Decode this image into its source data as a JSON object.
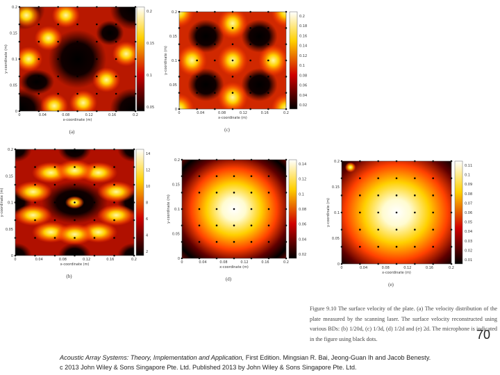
{
  "panels": [
    {
      "label": "(a)",
      "x_label": "x-coordinate (m)",
      "y_label": "y-coordinate (m)",
      "x_ticks": [
        "0",
        "0.04",
        "0.08",
        "0.12",
        "0.16",
        "0.2"
      ],
      "y_ticks": [
        "0",
        "0.05",
        "0.1",
        "0.15",
        "0.2"
      ],
      "colorbar_ticks": [
        "0.05",
        "0.1",
        "0.15",
        "0.2"
      ]
    },
    {
      "label": "(c)",
      "x_label": "x-coordinate (m)",
      "y_label": "y-coordinate (m)",
      "x_ticks": [
        "0",
        "0.04",
        "0.08",
        "0.12",
        "0.16",
        "0.2"
      ],
      "y_ticks": [
        "0",
        "0.05",
        "0.1",
        "0.15",
        "0.2"
      ],
      "colorbar_ticks": [
        "0.02",
        "0.04",
        "0.06",
        "0.08",
        "0.1",
        "0.12",
        "0.14",
        "0.16",
        "0.18",
        "0.2"
      ]
    },
    {
      "label": "(b)",
      "x_label": "x-coordinate (m)",
      "y_label": "y-coordinate (m)",
      "x_ticks": [
        "0",
        "0.04",
        "0.08",
        "0.12",
        "0.16",
        "0.2"
      ],
      "y_ticks": [
        "0",
        "0.05",
        "0.1",
        "0.15",
        "0.2"
      ],
      "colorbar_ticks": [
        "2",
        "4",
        "6",
        "8",
        "10",
        "12",
        "14"
      ]
    },
    {
      "label": "(d)",
      "x_label": "x-coordinate (m)",
      "y_label": "y-coordinate (m)",
      "x_ticks": [
        "0",
        "0.04",
        "0.08",
        "0.12",
        "0.16",
        "0.2"
      ],
      "y_ticks": [
        "0",
        "0.05",
        "0.1",
        "0.15",
        "0.2"
      ],
      "colorbar_ticks": [
        "0.02",
        "0.04",
        "0.06",
        "0.08",
        "0.1",
        "0.12",
        "0.14"
      ]
    },
    {
      "label": "(e)",
      "x_label": "x-coordinate (m)",
      "y_label": "y-coordinate (m)",
      "x_ticks": [
        "0",
        "0.04",
        "0.08",
        "0.12",
        "0.16",
        "0.2"
      ],
      "y_ticks": [
        "0",
        "0.05",
        "0.1",
        "0.15",
        "0.2"
      ],
      "colorbar_ticks": [
        "0.01",
        "0.02",
        "0.03",
        "0.04",
        "0.05",
        "0.06",
        "0.07",
        "0.08",
        "0.09",
        "0.1",
        "0.11"
      ]
    }
  ],
  "figure_caption": "Figure 9.10  The surface velocity of the plate. (a) The velocity distribution of the plate measured by the scanning laser. The surface velocity reconstructed using various BDs: (b) 1/20d, (c) 1/3d, (d) 1/2d and (e) 2d. The microphone is indicated in the figure using black dots.",
  "footer": {
    "book_title": "Acoustic Array Systems: Theory, Implementation and Application,",
    "edition_authors": " First Edition. Mingsian R. Bai, Jeong-Guan Ih and Jacob Benesty.",
    "copyright": "c 2013 John Wiley & Sons Singapore Pte. Ltd. Published 2013 by John Wiley & Sons Singapore Pte. Ltd."
  },
  "page_number": "70"
}
